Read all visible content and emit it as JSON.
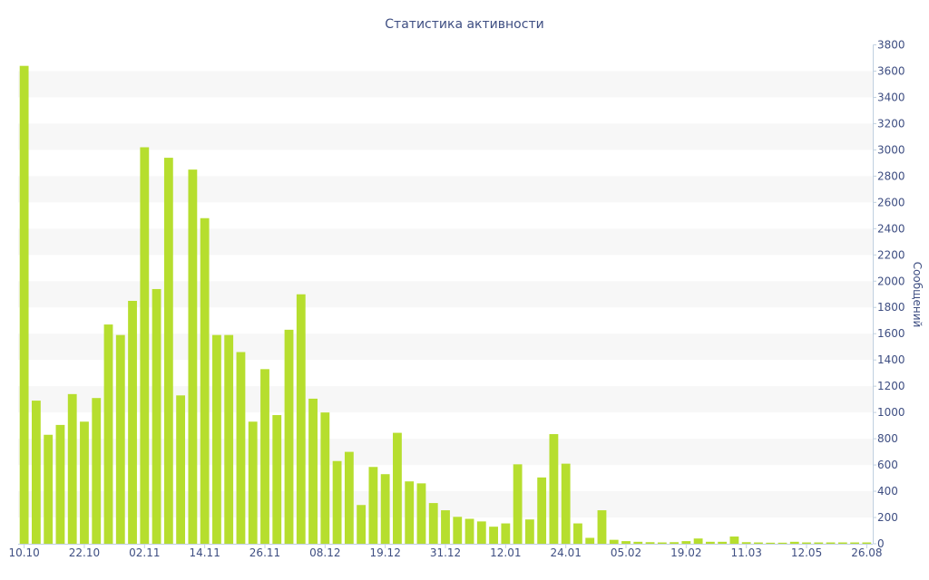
{
  "chart_data": {
    "type": "bar",
    "title": "Статистика активности",
    "ylabel": "Сообщений",
    "y_axis_side": "right",
    "ylim": [
      0,
      3800
    ],
    "yticks": [
      0,
      200,
      400,
      600,
      800,
      1000,
      1200,
      1400,
      1600,
      1800,
      2000,
      2200,
      2400,
      2600,
      2800,
      3000,
      3200,
      3400,
      3600,
      3800
    ],
    "grid": false,
    "alternate_bands": true,
    "legend": false,
    "categories": [
      "10.10",
      null,
      null,
      null,
      null,
      "22.10",
      null,
      null,
      null,
      null,
      "02.11",
      null,
      null,
      null,
      null,
      "14.11",
      null,
      null,
      null,
      null,
      "26.11",
      null,
      null,
      null,
      null,
      "08.12",
      null,
      null,
      null,
      null,
      "19.12",
      null,
      null,
      null,
      null,
      "31.12",
      null,
      null,
      null,
      null,
      "12.01",
      null,
      null,
      null,
      null,
      "24.01",
      null,
      null,
      null,
      null,
      "05.02",
      null,
      null,
      null,
      null,
      "19.02",
      null,
      null,
      null,
      null,
      "11.03",
      null,
      null,
      null,
      null,
      "12.05",
      null,
      null,
      null,
      null,
      "26.08"
    ],
    "values": [
      3640,
      1090,
      830,
      905,
      1140,
      930,
      1110,
      1670,
      1590,
      1850,
      3020,
      1940,
      2940,
      1130,
      2850,
      2480,
      1590,
      1590,
      1460,
      930,
      1330,
      980,
      1630,
      1900,
      1105,
      1000,
      630,
      700,
      295,
      585,
      530,
      845,
      475,
      460,
      310,
      255,
      205,
      190,
      170,
      130,
      155,
      605,
      185,
      505,
      835,
      610,
      155,
      45,
      255,
      30,
      20,
      15,
      12,
      10,
      12,
      20,
      40,
      15,
      15,
      55,
      12,
      10,
      8,
      8,
      15,
      10,
      10,
      10,
      10,
      10,
      10
    ],
    "colors": {
      "bar": "#b6de2e",
      "band": "#f7f7f7",
      "text": "#3e4e82",
      "axis": "#c0d0e0"
    }
  }
}
